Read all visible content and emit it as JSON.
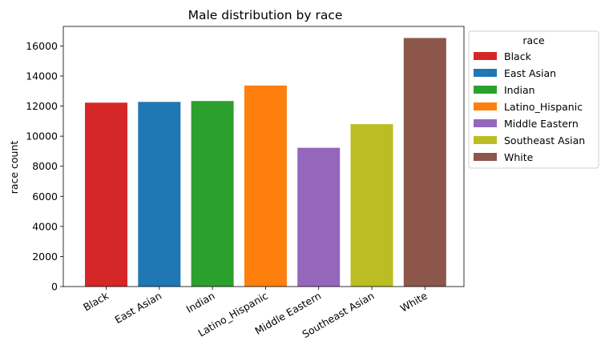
{
  "chart_data": {
    "type": "bar",
    "title": "Male distribution by race",
    "xlabel": "",
    "ylabel": "race count",
    "ylim": [
      0,
      17300
    ],
    "yticks": [
      0,
      2000,
      4000,
      6000,
      8000,
      10000,
      12000,
      14000,
      16000
    ],
    "categories": [
      "Black",
      "East Asian",
      "Indian",
      "Latino_Hispanic",
      "Middle Eastern",
      "Southeast Asian",
      "White"
    ],
    "values": [
      12230,
      12280,
      12340,
      13370,
      9230,
      10800,
      16530
    ],
    "colors": [
      "#d62728",
      "#1f77b4",
      "#2ca02c",
      "#ff7f0e",
      "#9467bd",
      "#bcbd22",
      "#8c564b"
    ],
    "legend": {
      "title": "race",
      "placement": "outside-right",
      "entries": [
        "Black",
        "East Asian",
        "Indian",
        "Latino_Hispanic",
        "Middle Eastern",
        "Southeast Asian",
        "White"
      ]
    },
    "grid": false
  }
}
